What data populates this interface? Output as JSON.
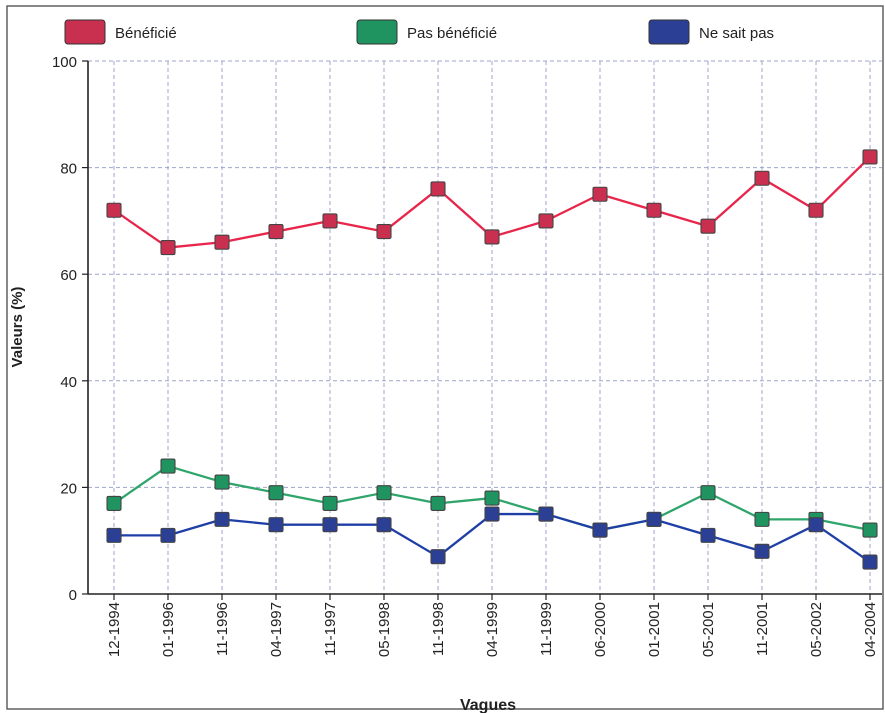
{
  "chart_data": {
    "type": "line",
    "title": "",
    "xlabel": "Vagues",
    "ylabel": "Valeurs (%)",
    "ylim": [
      0,
      100
    ],
    "yticks": [
      0,
      20,
      40,
      60,
      80,
      100
    ],
    "grid": true,
    "legend_position": "top",
    "categories": [
      "12-1994",
      "01-1996",
      "11-1996",
      "04-1997",
      "11-1997",
      "05-1998",
      "11-1998",
      "04-1999",
      "11-1999",
      "06-2000",
      "01-2001",
      "05-2001",
      "11-2001",
      "05-2002",
      "04-2004"
    ],
    "series": [
      {
        "name": "Bénéficié",
        "color": "#e8264b",
        "marker_color": "#c9304f",
        "values": [
          72,
          65,
          66,
          68,
          70,
          68,
          76,
          67,
          70,
          75,
          72,
          69,
          78,
          72,
          82
        ]
      },
      {
        "name": "Pas bénéficié",
        "color": "#2fa56b",
        "marker_color": "#1f9460",
        "values": [
          17,
          24,
          21,
          19,
          17,
          19,
          17,
          18,
          15,
          12,
          14,
          19,
          14,
          14,
          12
        ]
      },
      {
        "name": "Ne sait pas",
        "color": "#1f3fa6",
        "marker_color": "#2b3f95",
        "values": [
          11,
          11,
          14,
          13,
          13,
          13,
          7,
          15,
          15,
          12,
          14,
          11,
          8,
          13,
          6
        ]
      }
    ]
  }
}
